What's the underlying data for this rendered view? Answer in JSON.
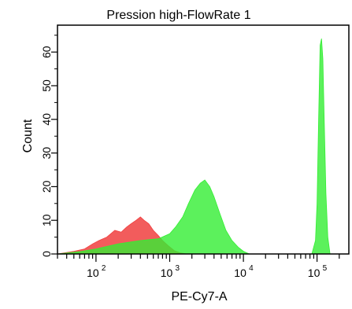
{
  "chart_data": {
    "type": "area",
    "title": "Pression high-FlowRate 1",
    "xlabel": "PE-Cy7-A",
    "ylabel": "Count",
    "x_scale": "log",
    "xlim": [
      30,
      270000
    ],
    "ylim": [
      0,
      68
    ],
    "x_ticks": [
      {
        "base": "10",
        "exp": "2",
        "value": 100
      },
      {
        "base": "10",
        "exp": "3",
        "value": 1000
      },
      {
        "base": "10",
        "exp": "4",
        "value": 10000
      },
      {
        "base": "10",
        "exp": "5",
        "value": 100000
      }
    ],
    "y_ticks": [
      0,
      10,
      20,
      30,
      40,
      50,
      60
    ],
    "grid": false,
    "legend": "none",
    "series": [
      {
        "color": "#f04040",
        "points": [
          [
            30,
            0
          ],
          [
            50,
            0.8
          ],
          [
            70,
            1.5
          ],
          [
            90,
            3
          ],
          [
            110,
            4
          ],
          [
            140,
            5
          ],
          [
            180,
            7
          ],
          [
            220,
            6.5
          ],
          [
            260,
            8
          ],
          [
            300,
            9
          ],
          [
            350,
            10
          ],
          [
            400,
            11
          ],
          [
            450,
            10
          ],
          [
            520,
            9
          ],
          [
            600,
            7
          ],
          [
            700,
            5.5
          ],
          [
            800,
            4
          ],
          [
            950,
            2.5
          ],
          [
            1150,
            1
          ],
          [
            1400,
            0.3
          ],
          [
            1700,
            0
          ]
        ]
      },
      {
        "color": "#33ee33",
        "points": [
          [
            30,
            0
          ],
          [
            60,
            0.7
          ],
          [
            100,
            1.5
          ],
          [
            200,
            3
          ],
          [
            400,
            4
          ],
          [
            700,
            4.5
          ],
          [
            1000,
            6
          ],
          [
            1200,
            8
          ],
          [
            1500,
            11
          ],
          [
            1800,
            15
          ],
          [
            2200,
            19
          ],
          [
            2600,
            21
          ],
          [
            3000,
            22
          ],
          [
            3500,
            20
          ],
          [
            4000,
            17
          ],
          [
            4800,
            12
          ],
          [
            5800,
            7
          ],
          [
            7000,
            4
          ],
          [
            8500,
            2
          ],
          [
            10000,
            0.8
          ],
          [
            12000,
            0
          ],
          [
            85000,
            0
          ],
          [
            95000,
            4
          ],
          [
            100000,
            15
          ],
          [
            105000,
            40
          ],
          [
            110000,
            62
          ],
          [
            115000,
            64
          ],
          [
            120000,
            58
          ],
          [
            125000,
            40
          ],
          [
            132000,
            18
          ],
          [
            140000,
            5
          ],
          [
            150000,
            0
          ]
        ]
      }
    ]
  }
}
